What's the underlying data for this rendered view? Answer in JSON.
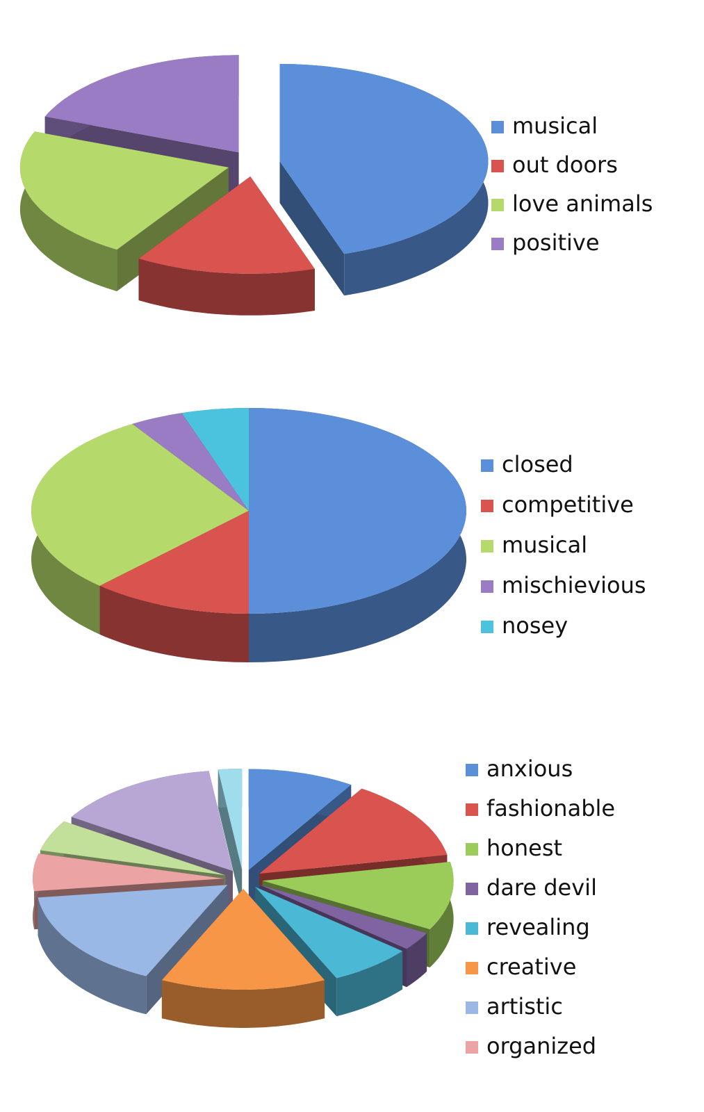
{
  "chart_data": [
    {
      "type": "pie",
      "categories": [
        "musical",
        "out doors",
        "love animals",
        "positive"
      ],
      "values": [
        45,
        14,
        22,
        19
      ],
      "colors": [
        "#5b8fd9",
        "#d9534f",
        "#b5d96a",
        "#9a7cc4"
      ]
    },
    {
      "type": "pie",
      "categories": [
        "closed",
        "competitive",
        "musical",
        "mischievious",
        "nosey"
      ],
      "values": [
        50,
        12,
        29,
        4,
        5
      ],
      "colors": [
        "#5b8fd9",
        "#d9534f",
        "#b5d96a",
        "#9a7cc4",
        "#4cc3de"
      ]
    },
    {
      "type": "pie",
      "categories": [
        "anxious",
        "fashionable",
        "honest",
        "dare devil",
        "revealing",
        "creative",
        "artistic",
        "organized",
        null,
        null,
        null
      ],
      "values": [
        9,
        13,
        11,
        3,
        7,
        14,
        16,
        6,
        5,
        14,
        2
      ],
      "colors": [
        "#5b8fd9",
        "#d9534f",
        "#9bcb59",
        "#8064a2",
        "#4bb8d6",
        "#f79646",
        "#9ab8e6",
        "#eba3a3",
        "#c3e09b",
        "#b8a6d4",
        "#9fdcec"
      ]
    }
  ]
}
